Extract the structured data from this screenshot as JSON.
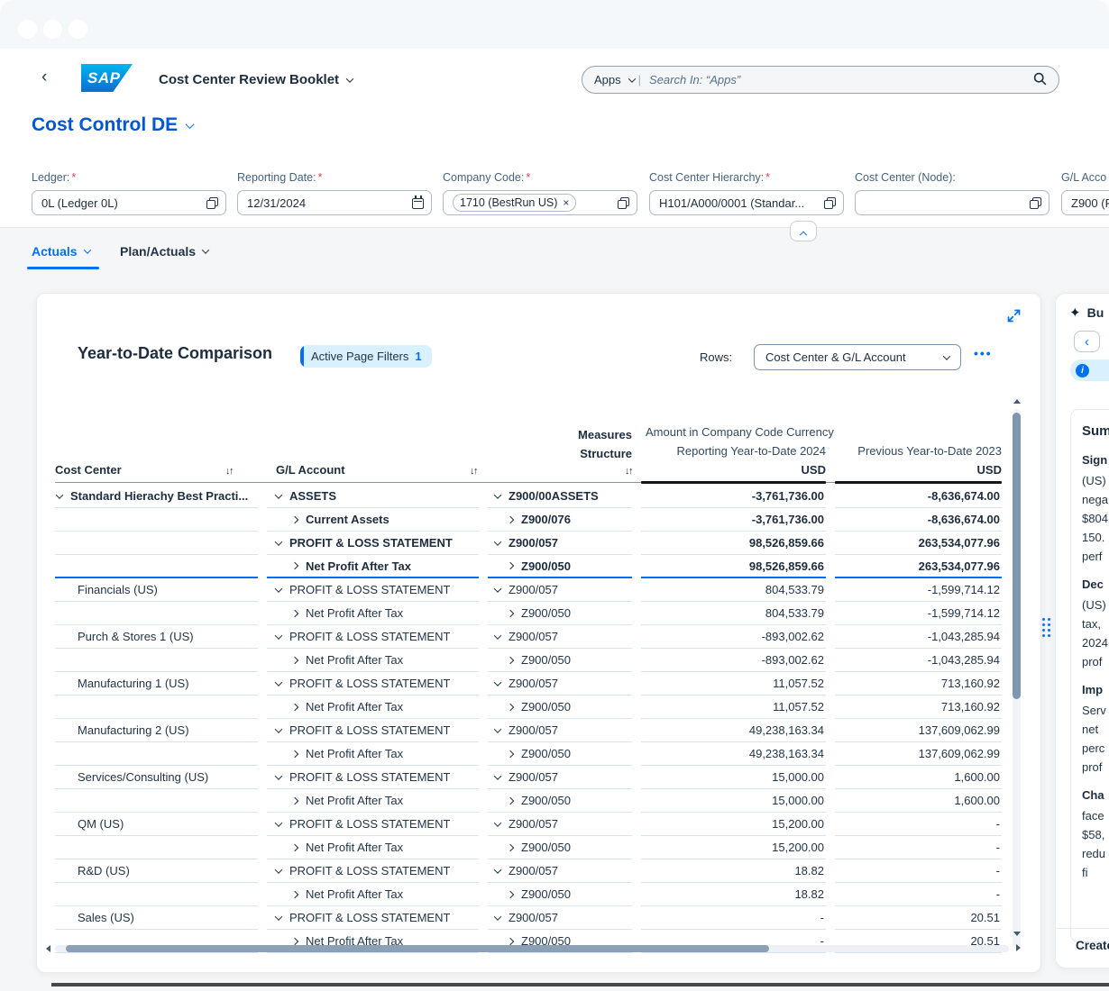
{
  "colors": {
    "accent": "#0070f2",
    "title_blue": "#0057d2",
    "text": "#1d2d3e",
    "scroll_thumb": "#7f97ae"
  },
  "shell": {
    "back_icon": "‹",
    "logo_text": "SAP",
    "app_title": "Cost Center Review Booklet",
    "search_scope": "Apps",
    "search_divider": "|",
    "search_placeholder": "Search In: “Apps”"
  },
  "page": {
    "title": "Cost Control DE"
  },
  "filters": [
    {
      "label": "Ledger:",
      "required_mark": "*",
      "value": "0L (Ledger 0L)"
    },
    {
      "label": "Reporting Date:",
      "required_mark": "*",
      "value": "12/31/2024"
    },
    {
      "label": "Company Code:",
      "required_mark": "*",
      "token": "1710 (BestRun US)",
      "remove_icon": "×"
    },
    {
      "label": "Cost Center Hierarchy:",
      "required_mark": "*",
      "value": "H101/A000/0001 (Standar..."
    },
    {
      "label": "Cost Center (Node):",
      "required_mark": "",
      "value": ""
    },
    {
      "label": "G/L Acco",
      "required_mark": "",
      "value": "Z900 (F"
    }
  ],
  "tabs": [
    {
      "label": "Actuals"
    },
    {
      "label": "Plan/Actuals"
    }
  ],
  "card": {
    "title": "Year-to-Date Comparison",
    "badge_label": "Active Page Filters",
    "badge_count": "1",
    "rows_label": "Rows:",
    "rows_value": "Cost Center & G/L Account",
    "overflow_icon": "•••"
  },
  "table": {
    "headers": {
      "cost_center": "Cost Center",
      "gl_account": "G/L Account",
      "measures_line1": "Measures",
      "measures_line2": "Structure",
      "sort_icon": "↓↑",
      "amount_group": "Amount in Company Code Currency",
      "col1": "Reporting Year-to-Date 2024",
      "col2": "Previous Year-to-Date 2023",
      "col1_unit": "USD",
      "col2_unit": "USD"
    },
    "rows": [
      {
        "cc": "Standard Hierachy Best Practi...",
        "cc_chev": "down",
        "gl": "ASSETS",
        "gl_chev": "down",
        "ms": "Z900/00ASSETS",
        "ms_chev": "down",
        "v1": "-3,761,736.00",
        "v2": "-8,636,674.00",
        "bold": true
      },
      {
        "cc": "",
        "gl": "Current Assets",
        "gl_chev": "right",
        "gl_ind": true,
        "ms": "Z900/076",
        "ms_chev": "right",
        "ms_ind": true,
        "v1": "-3,761,736.00",
        "v2": "-8,636,674.00",
        "bold": true
      },
      {
        "cc": "",
        "gl": "PROFIT & LOSS STATEMENT",
        "gl_chev": "down",
        "ms": "Z900/057",
        "ms_chev": "down",
        "v1": "98,526,859.66",
        "v2": "263,534,077.96",
        "bold": true
      },
      {
        "cc": "",
        "gl": "Net Profit After Tax",
        "gl_chev": "right",
        "gl_ind": true,
        "ms": "Z900/050",
        "ms_chev": "right",
        "ms_ind": true,
        "v1": "98,526,859.66",
        "v2": "263,534,077.96",
        "bold": true,
        "group_end": true
      },
      {
        "cc": "Financials (US)",
        "cc_ind": true,
        "gl": "PROFIT & LOSS STATEMENT",
        "gl_chev": "down",
        "ms": "Z900/057",
        "ms_chev": "down",
        "v1": "804,533.79",
        "v2": "-1,599,714.12"
      },
      {
        "cc": "",
        "gl": "Net Profit After Tax",
        "gl_chev": "right",
        "gl_ind": true,
        "ms": "Z900/050",
        "ms_chev": "right",
        "ms_ind": true,
        "v1": "804,533.79",
        "v2": "-1,599,714.12"
      },
      {
        "cc": "Purch & Stores 1 (US)",
        "cc_ind": true,
        "gl": "PROFIT & LOSS STATEMENT",
        "gl_chev": "down",
        "ms": "Z900/057",
        "ms_chev": "down",
        "v1": "-893,002.62",
        "v2": "-1,043,285.94"
      },
      {
        "cc": "",
        "gl": "Net Profit After Tax",
        "gl_chev": "right",
        "gl_ind": true,
        "ms": "Z900/050",
        "ms_chev": "right",
        "ms_ind": true,
        "v1": "-893,002.62",
        "v2": "-1,043,285.94"
      },
      {
        "cc": "Manufacturing 1 (US)",
        "cc_ind": true,
        "gl": "PROFIT & LOSS STATEMENT",
        "gl_chev": "down",
        "ms": "Z900/057",
        "ms_chev": "down",
        "v1": "11,057.52",
        "v2": "713,160.92"
      },
      {
        "cc": "",
        "gl": "Net Profit After Tax",
        "gl_chev": "right",
        "gl_ind": true,
        "ms": "Z900/050",
        "ms_chev": "right",
        "ms_ind": true,
        "v1": "11,057.52",
        "v2": "713,160.92"
      },
      {
        "cc": "Manufacturing 2 (US)",
        "cc_ind": true,
        "gl": "PROFIT & LOSS STATEMENT",
        "gl_chev": "down",
        "ms": "Z900/057",
        "ms_chev": "down",
        "v1": "49,238,163.34",
        "v2": "137,609,062.99"
      },
      {
        "cc": "",
        "gl": "Net Profit After Tax",
        "gl_chev": "right",
        "gl_ind": true,
        "ms": "Z900/050",
        "ms_chev": "right",
        "ms_ind": true,
        "v1": "49,238,163.34",
        "v2": "137,609,062.99"
      },
      {
        "cc": "Services/Consulting (US)",
        "cc_ind": true,
        "gl": "PROFIT & LOSS STATEMENT",
        "gl_chev": "down",
        "ms": "Z900/057",
        "ms_chev": "down",
        "v1": "15,000.00",
        "v2": "1,600.00"
      },
      {
        "cc": "",
        "gl": "Net Profit After Tax",
        "gl_chev": "right",
        "gl_ind": true,
        "ms": "Z900/050",
        "ms_chev": "right",
        "ms_ind": true,
        "v1": "15,000.00",
        "v2": "1,600.00"
      },
      {
        "cc": "QM (US)",
        "cc_ind": true,
        "gl": "PROFIT & LOSS STATEMENT",
        "gl_chev": "down",
        "ms": "Z900/057",
        "ms_chev": "down",
        "v1": "15,200.00",
        "v2": "-"
      },
      {
        "cc": "",
        "gl": "Net Profit After Tax",
        "gl_chev": "right",
        "gl_ind": true,
        "ms": "Z900/050",
        "ms_chev": "right",
        "ms_ind": true,
        "v1": "15,200.00",
        "v2": "-"
      },
      {
        "cc": "R&D (US)",
        "cc_ind": true,
        "gl": "PROFIT & LOSS STATEMENT",
        "gl_chev": "down",
        "ms": "Z900/057",
        "ms_chev": "down",
        "v1": "18.82",
        "v2": "-"
      },
      {
        "cc": "",
        "gl": "Net Profit After Tax",
        "gl_chev": "right",
        "gl_ind": true,
        "ms": "Z900/050",
        "ms_chev": "right",
        "ms_ind": true,
        "v1": "18.82",
        "v2": "-"
      },
      {
        "cc": "Sales (US)",
        "cc_ind": true,
        "gl": "PROFIT & LOSS STATEMENT",
        "gl_chev": "down",
        "ms": "Z900/057",
        "ms_chev": "down",
        "v1": "-",
        "v2": "20.51"
      },
      {
        "cc": "",
        "gl": "Net Profit After Tax",
        "gl_chev": "right",
        "gl_ind": true,
        "ms": "Z900/050",
        "ms_chev": "right",
        "ms_ind": true,
        "v1": "-",
        "v2": "20.51"
      }
    ]
  },
  "side_panel": {
    "header_fragment": "Bu",
    "back_icon": "‹",
    "summary_title": "Sum",
    "sections": [
      {
        "heading": "Sign",
        "lines": [
          "(US)",
          "nega",
          "$804",
          "150.",
          "perf"
        ]
      },
      {
        "heading": "Dec",
        "lines": [
          "(US)",
          "tax,",
          "2024",
          "prof"
        ]
      },
      {
        "heading": "Imp",
        "lines": [
          "Serv",
          "net",
          "perc",
          "prof"
        ]
      },
      {
        "heading": "Cha",
        "lines": [
          "face",
          "$58,",
          "redu",
          "fi"
        ]
      }
    ],
    "footer_action": "Create"
  }
}
